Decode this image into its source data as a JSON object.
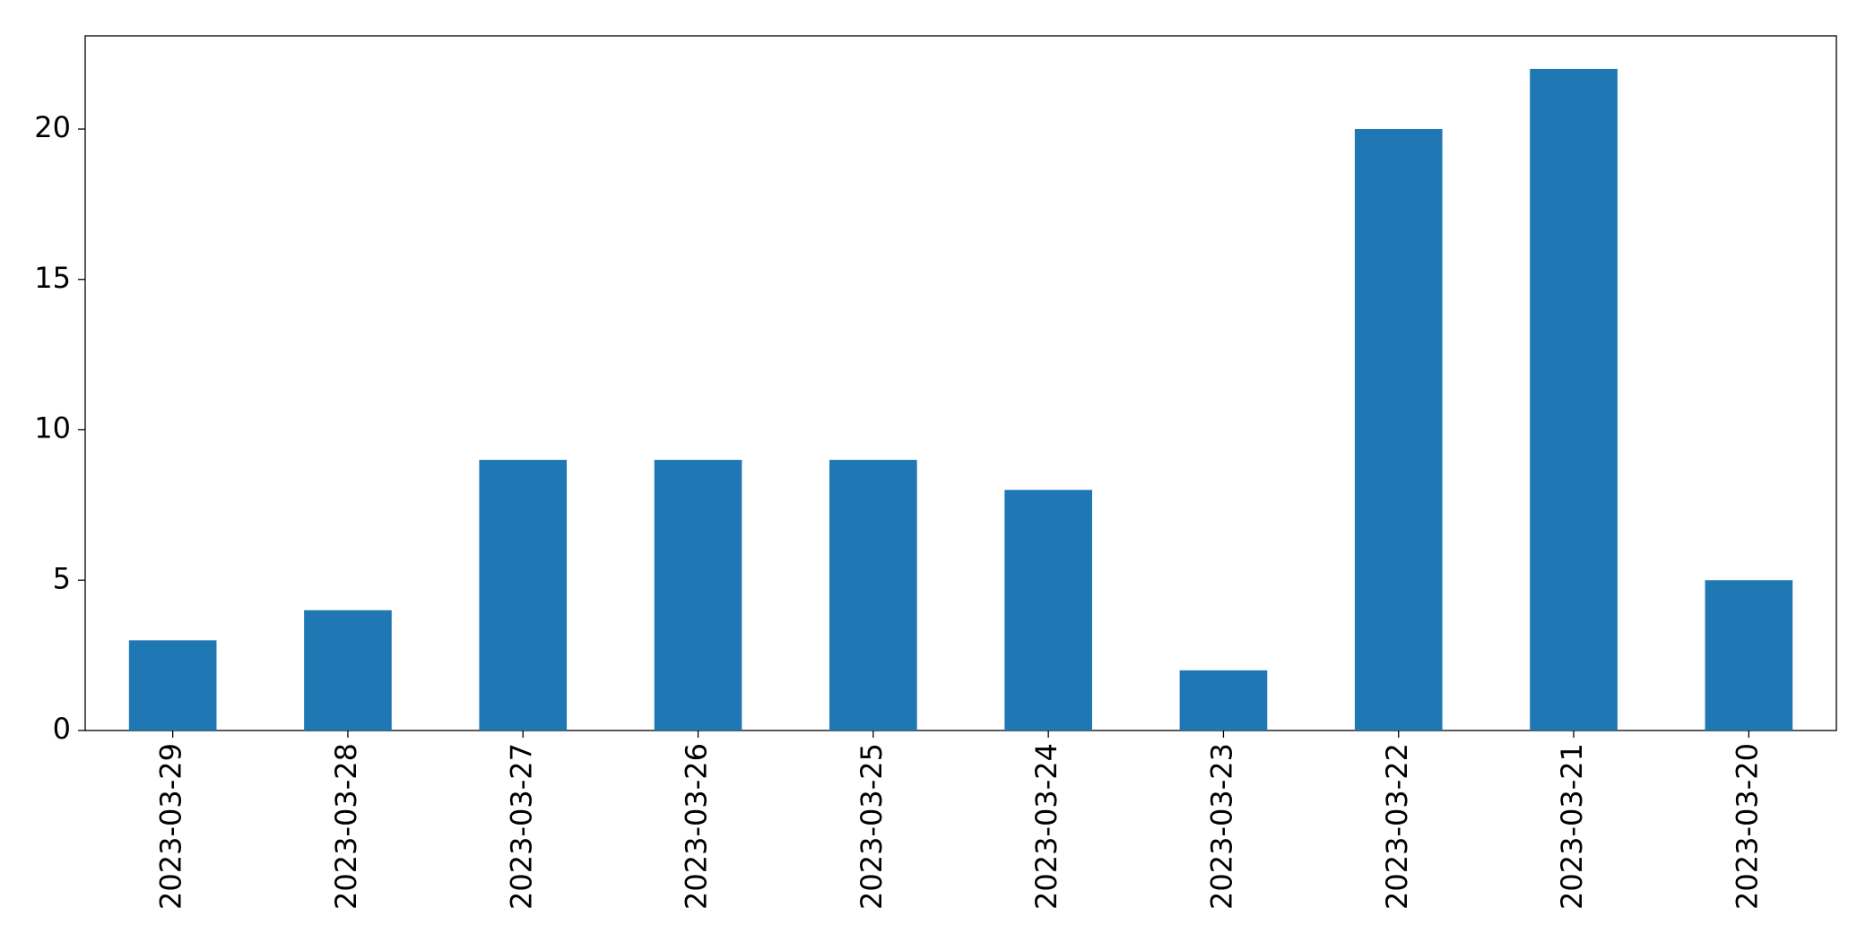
{
  "chart_data": {
    "type": "bar",
    "categories": [
      "2023-03-29",
      "2023-03-28",
      "2023-03-27",
      "2023-03-26",
      "2023-03-25",
      "2023-03-24",
      "2023-03-23",
      "2023-03-22",
      "2023-03-21",
      "2023-03-20"
    ],
    "values": [
      3,
      4,
      9,
      9,
      9,
      8,
      2,
      20,
      22,
      5
    ],
    "color": "#1f77b4",
    "ylim": [
      0,
      23.1
    ],
    "yticks": [
      0,
      5,
      10,
      15,
      20
    ],
    "grid": false
  }
}
